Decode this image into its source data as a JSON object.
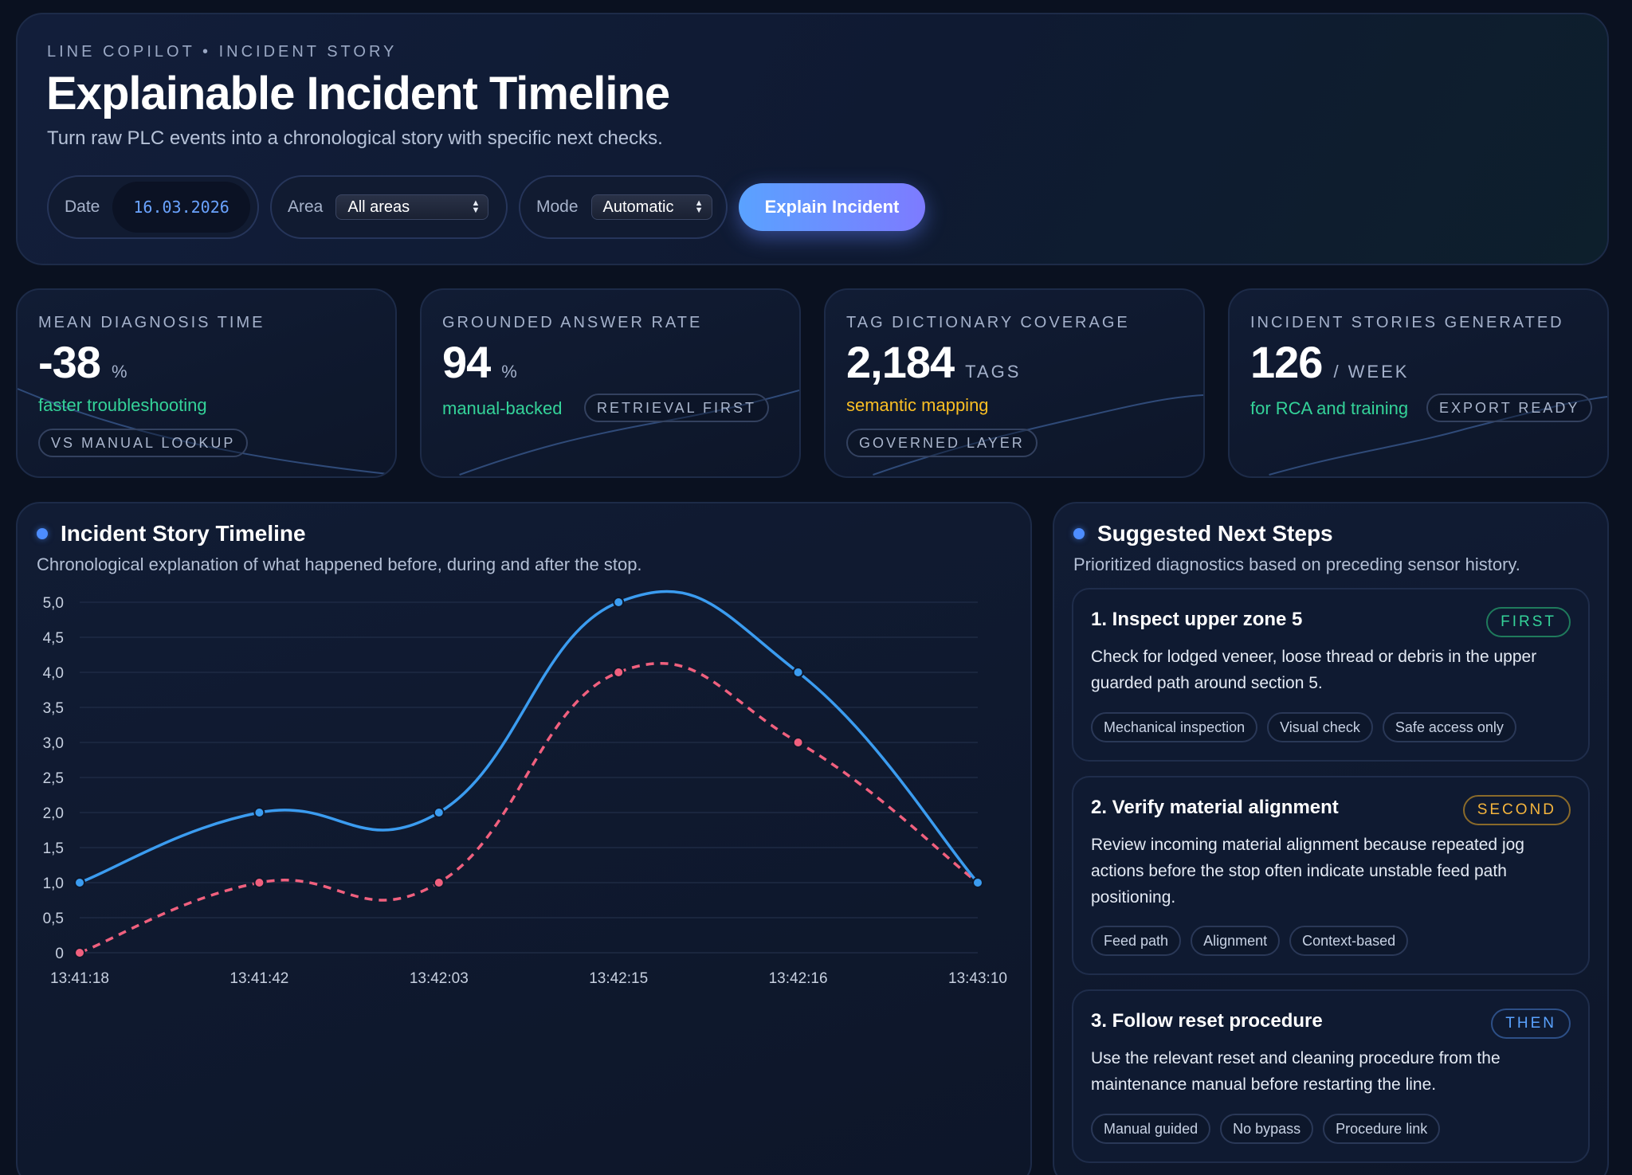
{
  "header": {
    "eyebrow": "LINE COPILOT • INCIDENT STORY",
    "title": "Explainable Incident Timeline",
    "subtitle": "Turn raw PLC events into a chronological story with specific next checks.",
    "date_label": "Date",
    "date_value": "16.03.2026",
    "area_label": "Area",
    "area_value": "All areas",
    "mode_label": "Mode",
    "mode_value": "Automatic",
    "explain_button": "Explain Incident"
  },
  "kpis": [
    {
      "label": "MEAN DIAGNOSIS TIME",
      "value": "-38",
      "unit": "%",
      "note": "faster troubleshooting",
      "note_color": "#34d399",
      "chip": "VS MANUAL LOOKUP"
    },
    {
      "label": "GROUNDED ANSWER RATE",
      "value": "94",
      "unit": "%",
      "note": "manual-backed",
      "note_color": "#34d399",
      "chip": "RETRIEVAL FIRST"
    },
    {
      "label": "TAG DICTIONARY COVERAGE",
      "value": "2,184",
      "unit": "TAGS",
      "note": "semantic mapping",
      "note_color": "#fbbf24",
      "chip": "GOVERNED LAYER"
    },
    {
      "label": "INCIDENT STORIES GENERATED",
      "value": "126",
      "unit": "/ WEEK",
      "note": "for RCA and training",
      "note_color": "#34d399",
      "chip": "EXPORT READY"
    }
  ],
  "timeline": {
    "title": "Incident Story Timeline",
    "subtitle": "Chronological explanation of what happened before, during and after the stop."
  },
  "chart_data": {
    "type": "line",
    "x": [
      "13:41:18",
      "13:41:42",
      "13:42:03",
      "13:42:15",
      "13:42:16",
      "13:43:10"
    ],
    "series": [
      {
        "values": [
          1.0,
          2.0,
          2.0,
          5.0,
          4.0,
          1.0
        ],
        "color": "#3b9cf0",
        "style": "solid"
      },
      {
        "values": [
          0,
          1.0,
          1.0,
          4.0,
          3.0,
          1.0
        ],
        "color": "#f0607e",
        "style": "dashed"
      }
    ],
    "yticks": [
      "0",
      "0,5",
      "1,0",
      "1,5",
      "2,0",
      "2,5",
      "3,0",
      "3,5",
      "4,0",
      "4,5",
      "5,0"
    ],
    "ylim": [
      0,
      5
    ],
    "grid": true
  },
  "steps": {
    "title": "Suggested Next Steps",
    "subtitle": "Prioritized diagnostics based on preceding sensor history.",
    "items": [
      {
        "title": "1. Inspect upper zone 5",
        "badge": "FIRST",
        "badge_color": "#34d399",
        "body": "Check for lodged veneer, loose thread or debris in the upper guarded path around section 5.",
        "tags": [
          "Mechanical inspection",
          "Visual check",
          "Safe access only"
        ]
      },
      {
        "title": "2. Verify material alignment",
        "badge": "SECOND",
        "badge_color": "#f5b53d",
        "body": "Review incoming material alignment because repeated jog actions before the stop often indicate unstable feed path positioning.",
        "tags": [
          "Feed path",
          "Alignment",
          "Context-based"
        ]
      },
      {
        "title": "3. Follow reset procedure",
        "badge": "THEN",
        "badge_color": "#5aa2ff",
        "body": "Use the relevant reset and cleaning procedure from the maintenance manual before restarting the line.",
        "tags": [
          "Manual guided",
          "No bypass",
          "Procedure link"
        ]
      }
    ]
  }
}
